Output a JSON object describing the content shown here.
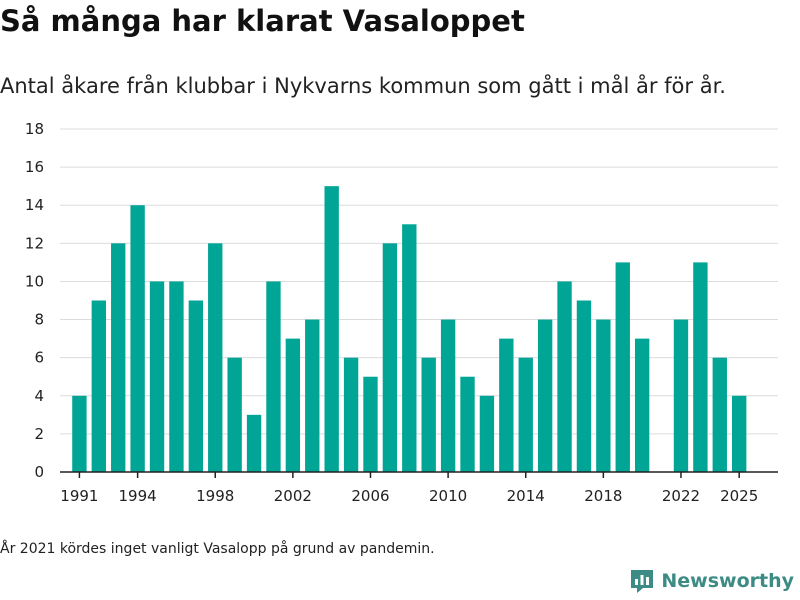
{
  "title": "Så många har klarat Vasaloppet",
  "subtitle": "Antal åkare från klubbar i Nykvarns kommun som gått i mål år för år.",
  "footnote": "År 2021 kördes inget vanligt Vasalopp på grund av pandemin.",
  "brand": {
    "name": "Newsworthy",
    "icon": "newsworthy-logo-icon",
    "color": "#3c8b85"
  },
  "chart_data": {
    "type": "bar",
    "x": [
      1991,
      1992,
      1993,
      1994,
      1995,
      1996,
      1997,
      1998,
      1999,
      2000,
      2001,
      2002,
      2003,
      2004,
      2005,
      2006,
      2007,
      2008,
      2009,
      2010,
      2011,
      2012,
      2013,
      2014,
      2015,
      2016,
      2017,
      2018,
      2019,
      2020,
      2021,
      2022,
      2023,
      2024,
      2025
    ],
    "values": [
      4,
      9,
      12,
      14,
      10,
      10,
      9,
      12,
      6,
      3,
      10,
      7,
      8,
      15,
      6,
      5,
      12,
      13,
      6,
      8,
      5,
      4,
      7,
      6,
      8,
      10,
      9,
      8,
      11,
      7,
      null,
      8,
      11,
      6,
      4
    ],
    "xticks": [
      "1991",
      "1994",
      "1998",
      "2002",
      "2006",
      "2010",
      "2014",
      "2018",
      "2022",
      "2025"
    ],
    "yticks": [
      "0",
      "2",
      "4",
      "6",
      "8",
      "10",
      "12",
      "14",
      "16",
      "18"
    ],
    "ylim": [
      0,
      18
    ],
    "xlim": [
      1990,
      2027
    ],
    "xlabel": "",
    "ylabel": "",
    "grid": true,
    "bar_color": "#00a596"
  }
}
